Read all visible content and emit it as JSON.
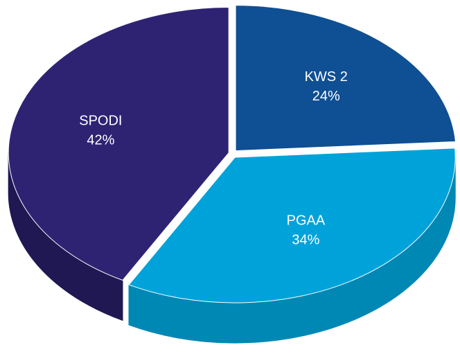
{
  "chart_data": {
    "type": "pie",
    "categories": [
      "KWS 2",
      "PGAA",
      "SPODI"
    ],
    "values": [
      24,
      34,
      42
    ],
    "value_labels": [
      "24%",
      "34%",
      "42%"
    ],
    "colors": [
      "#0f4f94",
      "#00a3d9",
      "#2e2373"
    ],
    "side_colors": [
      "#0a3a70",
      "#0088b5",
      "#1f1852"
    ]
  }
}
